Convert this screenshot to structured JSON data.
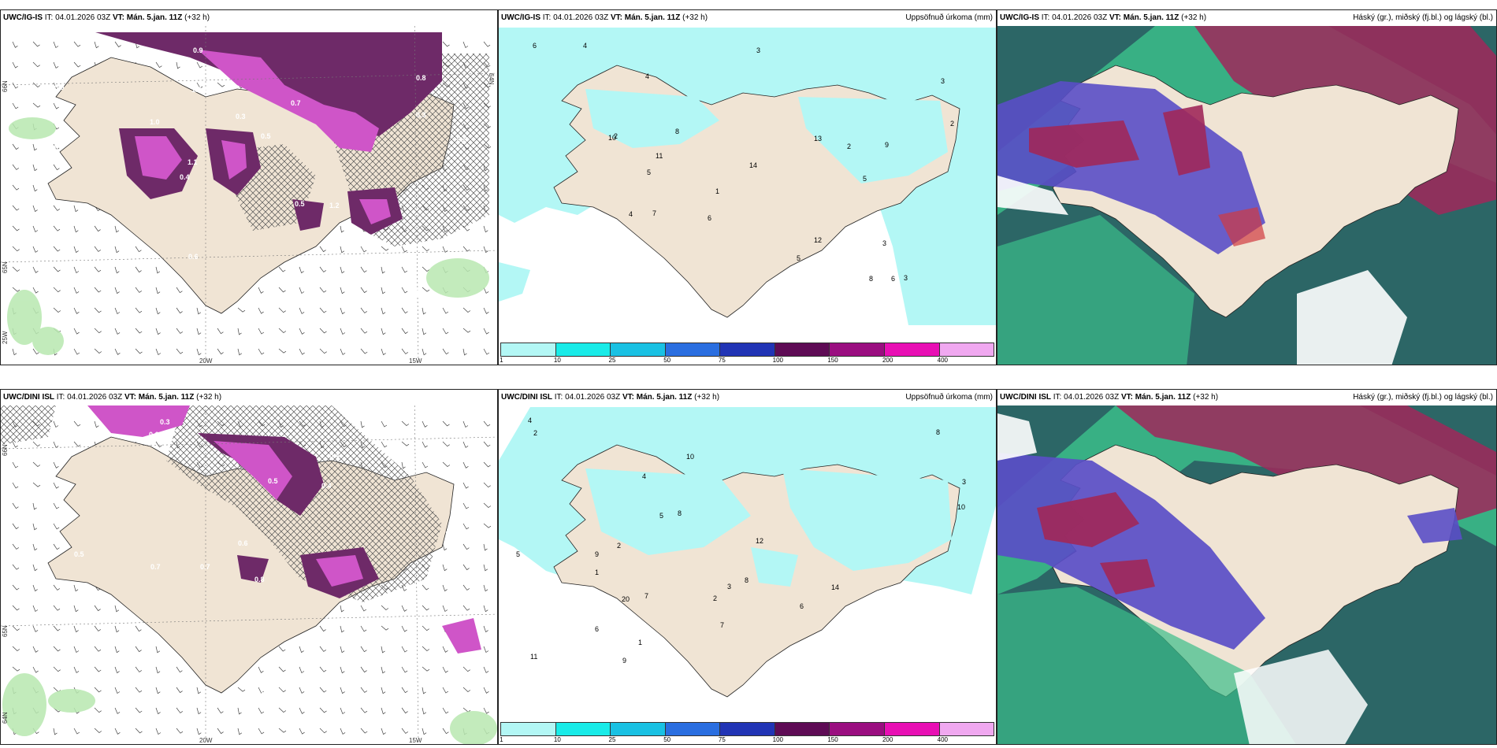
{
  "panels": {
    "top_left": {
      "title_model": "UWC/IG-IS",
      "title_it": "IT: 04.01.2026 03Z",
      "title_vt": "VT: Mán. 5.jan. 11Z",
      "title_lead": "(+32 h)",
      "lon_labels": [
        "20W",
        "15W"
      ],
      "lat_labels": [
        "66N",
        "65N",
        "25W",
        "64N"
      ],
      "value_labels": [
        "0.4",
        "0.5",
        "0.8",
        "0.4",
        "0.7",
        "0.8",
        "1.2",
        "0.3",
        "0.8",
        "1.0",
        "0.6",
        "1.1",
        "2.1",
        "0.5",
        "1.2",
        "0.9",
        "0.9",
        "0.8",
        "0.5",
        "0.3",
        "1.1",
        "0.6"
      ]
    },
    "top_mid": {
      "title_model": "UWC/IG-IS",
      "title_it": "IT: 04.01.2026 03Z",
      "title_vt": "VT: Mán. 5.jan. 11Z",
      "title_lead": "(+32 h)",
      "right_label": "Uppsöfnuð úrkoma (mm)",
      "value_labels": [
        "1",
        "10",
        "4",
        "5",
        "3",
        "4",
        "6",
        "5",
        "7",
        "2",
        "9",
        "3",
        "6",
        "8",
        "11",
        "12",
        "14",
        "2",
        "3",
        "8",
        "6",
        "2",
        "5",
        "4",
        "3",
        "13"
      ]
    },
    "top_right": {
      "title_model": "UWC/IG-IS",
      "title_it": "IT: 04.01.2026 03Z",
      "title_vt": "VT: Mán. 5.jan. 11Z",
      "title_lead": "(+32 h)",
      "right_label": "Háský (gr.), miðský (fj.bl.) og lágský (bl.)"
    },
    "bottom_left": {
      "title_model": "UWC/DINI ISL",
      "title_it": "IT: 04.01.2026 03Z",
      "title_vt": "VT: Mán. 5.jan. 11Z",
      "title_lead": "(+32 h)",
      "lon_labels": [
        "20W",
        "15W"
      ],
      "lat_labels": [
        "66N",
        "65N",
        "64N"
      ],
      "value_labels": [
        "0.3",
        "0.4",
        "1.2",
        "0.7",
        "0.8",
        "0.5",
        "0.3",
        "0.4",
        "1.5",
        "0.5",
        "0.6",
        "0.5",
        "0.6",
        "0.7",
        "1.1",
        "0.8"
      ]
    },
    "bottom_mid": {
      "title_model": "UWC/DINI ISL",
      "title_it": "IT: 04.01.2026 03Z",
      "title_vt": "VT: Mán. 5.jan. 11Z",
      "title_lead": "(+32 h)",
      "right_label": "Uppsöfnuð úrkoma (mm)",
      "value_labels": [
        "2",
        "4",
        "5",
        "8",
        "3",
        "6",
        "10",
        "7",
        "11",
        "14",
        "20",
        "12",
        "9",
        "1",
        "3",
        "5",
        "2",
        "6",
        "4",
        "8",
        "10",
        "7",
        "1",
        "2",
        "9",
        "8"
      ]
    },
    "bottom_right": {
      "title_model": "UWC/DINI ISL",
      "title_it": "IT: 04.01.2026 03Z",
      "title_vt": "VT: Mán. 5.jan. 11Z",
      "title_lead": "(+32 h)",
      "right_label": "Háský (gr.), miðský (fj.bl.) og lágský (bl.)"
    }
  },
  "colorbar": {
    "ticks": [
      "1",
      "10",
      "25",
      "50",
      "75",
      "100",
      "150",
      "200",
      "400"
    ],
    "colors": [
      "#b3f7f5",
      "#19ebe8",
      "#19c1e3",
      "#2a6ee0",
      "#2134b5",
      "#5e0b55",
      "#9a0e80",
      "#e80fb4",
      "#f0a8f0"
    ]
  },
  "colors": {
    "land": "#f0e4d4",
    "precip_light": "#b3f7f5",
    "precip_purple": "#8a2a7a",
    "precip_magenta": "#d24ad0",
    "sea_cloud_dark": "#2c6666",
    "cloud_high": "#3bbd8a",
    "cloud_mid": "#5a4ec7",
    "cloud_low": "#a0285a"
  }
}
